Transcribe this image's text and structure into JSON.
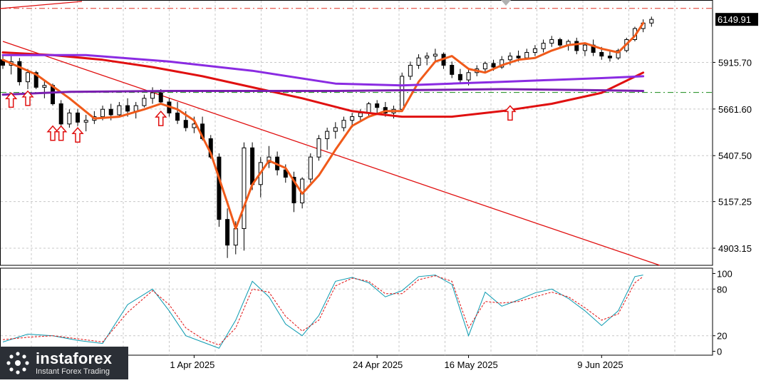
{
  "colors": {
    "background": "#ffffff",
    "grid": "#c8c8c8",
    "candle": "#000000",
    "ema_fast": "#f05a1a",
    "ema_mid": "#e01010",
    "ema_slow": "#8a2be2",
    "ema_flat": "#7a1fb0",
    "trendline": "#e01010",
    "resistance": "#e03020",
    "support": "#1a8a1a",
    "stoch_main": "#0a9ab0",
    "stoch_signal": "#e01010",
    "arrow": "#e01010",
    "price_label_bg": "#000000",
    "price_label_text": "#ffffff"
  },
  "price_axis": {
    "ticks": [
      "6149.91",
      "5915.70",
      "5661.60",
      "5407.50",
      "5157.25",
      "4903.15"
    ],
    "current_price": "6149.91"
  },
  "oscillator_axis": {
    "ticks": [
      "100",
      "80",
      "20",
      "0"
    ]
  },
  "time_axis": {
    "labels": [
      "1 Apr 2025",
      "24 Apr 2025",
      "16 May 2025",
      "9 Jun 2025"
    ]
  },
  "watermark": {
    "brand": "instaforex",
    "tagline": "Instant Forex Trading"
  },
  "chart_data": [
    {
      "type": "candlestick",
      "title": "",
      "ylim": [
        4810,
        6240
      ],
      "grid": true,
      "x_range": [
        0,
        85
      ],
      "x_tick_positions": [
        23,
        45,
        56,
        72
      ],
      "candles": [
        {
          "o": 5930,
          "h": 5960,
          "l": 5880,
          "c": 5900
        },
        {
          "o": 5900,
          "h": 5950,
          "l": 5850,
          "c": 5920
        },
        {
          "o": 5920,
          "h": 5940,
          "l": 5790,
          "c": 5810
        },
        {
          "o": 5810,
          "h": 5880,
          "l": 5770,
          "c": 5860
        },
        {
          "o": 5860,
          "h": 5870,
          "l": 5770,
          "c": 5780
        },
        {
          "o": 5780,
          "h": 5820,
          "l": 5720,
          "c": 5790
        },
        {
          "o": 5790,
          "h": 5800,
          "l": 5680,
          "c": 5690
        },
        {
          "o": 5690,
          "h": 5710,
          "l": 5560,
          "c": 5580
        },
        {
          "o": 5580,
          "h": 5660,
          "l": 5560,
          "c": 5640
        },
        {
          "o": 5640,
          "h": 5660,
          "l": 5570,
          "c": 5590
        },
        {
          "o": 5590,
          "h": 5630,
          "l": 5540,
          "c": 5600
        },
        {
          "o": 5600,
          "h": 5650,
          "l": 5580,
          "c": 5620
        },
        {
          "o": 5620,
          "h": 5680,
          "l": 5600,
          "c": 5660
        },
        {
          "o": 5660,
          "h": 5690,
          "l": 5600,
          "c": 5630
        },
        {
          "o": 5630,
          "h": 5700,
          "l": 5620,
          "c": 5680
        },
        {
          "o": 5680,
          "h": 5720,
          "l": 5620,
          "c": 5650
        },
        {
          "o": 5650,
          "h": 5700,
          "l": 5610,
          "c": 5680
        },
        {
          "o": 5680,
          "h": 5740,
          "l": 5670,
          "c": 5720
        },
        {
          "o": 5720,
          "h": 5780,
          "l": 5690,
          "c": 5750
        },
        {
          "o": 5750,
          "h": 5770,
          "l": 5690,
          "c": 5700
        },
        {
          "o": 5700,
          "h": 5720,
          "l": 5620,
          "c": 5640
        },
        {
          "o": 5640,
          "h": 5700,
          "l": 5580,
          "c": 5600
        },
        {
          "o": 5600,
          "h": 5650,
          "l": 5540,
          "c": 5560
        },
        {
          "o": 5560,
          "h": 5620,
          "l": 5530,
          "c": 5580
        },
        {
          "o": 5580,
          "h": 5620,
          "l": 5490,
          "c": 5500
        },
        {
          "o": 5500,
          "h": 5520,
          "l": 5390,
          "c": 5400
        },
        {
          "o": 5400,
          "h": 5420,
          "l": 5020,
          "c": 5060
        },
        {
          "o": 5060,
          "h": 5120,
          "l": 4850,
          "c": 4920
        },
        {
          "o": 4920,
          "h": 5050,
          "l": 4870,
          "c": 5010
        },
        {
          "o": 5010,
          "h": 5480,
          "l": 4890,
          "c": 5450
        },
        {
          "o": 5450,
          "h": 5480,
          "l": 5220,
          "c": 5250
        },
        {
          "o": 5250,
          "h": 5400,
          "l": 5180,
          "c": 5370
        },
        {
          "o": 5370,
          "h": 5460,
          "l": 5340,
          "c": 5400
        },
        {
          "o": 5400,
          "h": 5430,
          "l": 5300,
          "c": 5330
        },
        {
          "o": 5330,
          "h": 5360,
          "l": 5260,
          "c": 5290
        },
        {
          "o": 5290,
          "h": 5320,
          "l": 5100,
          "c": 5150
        },
        {
          "o": 5150,
          "h": 5290,
          "l": 5120,
          "c": 5280
        },
        {
          "o": 5280,
          "h": 5420,
          "l": 5260,
          "c": 5400
        },
        {
          "o": 5400,
          "h": 5520,
          "l": 5380,
          "c": 5500
        },
        {
          "o": 5500,
          "h": 5560,
          "l": 5440,
          "c": 5540
        },
        {
          "o": 5540,
          "h": 5590,
          "l": 5500,
          "c": 5560
        },
        {
          "o": 5560,
          "h": 5620,
          "l": 5540,
          "c": 5600
        },
        {
          "o": 5600,
          "h": 5640,
          "l": 5560,
          "c": 5620
        },
        {
          "o": 5620,
          "h": 5660,
          "l": 5600,
          "c": 5640
        },
        {
          "o": 5640,
          "h": 5700,
          "l": 5620,
          "c": 5690
        },
        {
          "o": 5690,
          "h": 5710,
          "l": 5640,
          "c": 5670
        },
        {
          "o": 5670,
          "h": 5700,
          "l": 5620,
          "c": 5640
        },
        {
          "o": 5640,
          "h": 5680,
          "l": 5610,
          "c": 5660
        },
        {
          "o": 5660,
          "h": 5860,
          "l": 5650,
          "c": 5840
        },
        {
          "o": 5840,
          "h": 5920,
          "l": 5820,
          "c": 5900
        },
        {
          "o": 5900,
          "h": 5960,
          "l": 5880,
          "c": 5940
        },
        {
          "o": 5940,
          "h": 5970,
          "l": 5900,
          "c": 5950
        },
        {
          "o": 5950,
          "h": 5990,
          "l": 5920,
          "c": 5960
        },
        {
          "o": 5960,
          "h": 5970,
          "l": 5880,
          "c": 5900
        },
        {
          "o": 5900,
          "h": 5920,
          "l": 5830,
          "c": 5850
        },
        {
          "o": 5850,
          "h": 5880,
          "l": 5800,
          "c": 5820
        },
        {
          "o": 5820,
          "h": 5880,
          "l": 5790,
          "c": 5860
        },
        {
          "o": 5860,
          "h": 5900,
          "l": 5840,
          "c": 5880
        },
        {
          "o": 5880,
          "h": 5920,
          "l": 5860,
          "c": 5910
        },
        {
          "o": 5910,
          "h": 5930,
          "l": 5870,
          "c": 5890
        },
        {
          "o": 5890,
          "h": 5950,
          "l": 5880,
          "c": 5930
        },
        {
          "o": 5930,
          "h": 5970,
          "l": 5900,
          "c": 5950
        },
        {
          "o": 5950,
          "h": 5980,
          "l": 5920,
          "c": 5940
        },
        {
          "o": 5940,
          "h": 5990,
          "l": 5930,
          "c": 5970
        },
        {
          "o": 5970,
          "h": 6010,
          "l": 5950,
          "c": 5990
        },
        {
          "o": 5990,
          "h": 6040,
          "l": 5970,
          "c": 6020
        },
        {
          "o": 6020,
          "h": 6060,
          "l": 6000,
          "c": 6040
        },
        {
          "o": 6040,
          "h": 6050,
          "l": 5990,
          "c": 6010
        },
        {
          "o": 6010,
          "h": 6040,
          "l": 5980,
          "c": 6030
        },
        {
          "o": 6030,
          "h": 6050,
          "l": 5960,
          "c": 5980
        },
        {
          "o": 5980,
          "h": 6020,
          "l": 5950,
          "c": 6010
        },
        {
          "o": 6010,
          "h": 6040,
          "l": 5950,
          "c": 5970
        },
        {
          "o": 5970,
          "h": 6000,
          "l": 5930,
          "c": 5950
        },
        {
          "o": 5950,
          "h": 5980,
          "l": 5920,
          "c": 5940
        },
        {
          "o": 5940,
          "h": 5990,
          "l": 5930,
          "c": 5980
        },
        {
          "o": 5980,
          "h": 6050,
          "l": 5970,
          "c": 6040
        },
        {
          "o": 6040,
          "h": 6110,
          "l": 6030,
          "c": 6100
        },
        {
          "o": 6100,
          "h": 6150,
          "l": 6080,
          "c": 6130
        },
        {
          "o": 6130,
          "h": 6165,
          "l": 6110,
          "c": 6150
        }
      ],
      "indicators": [
        {
          "kind": "ema_fast",
          "x": [
            0,
            4,
            8,
            11,
            14,
            17,
            19,
            21,
            23,
            25,
            27,
            28,
            30,
            32,
            34,
            36,
            38,
            40,
            42,
            44,
            46,
            48,
            50,
            52,
            54,
            56,
            58,
            60,
            62,
            64,
            66,
            68,
            70,
            72,
            74,
            76,
            77
          ],
          "y": [
            5930,
            5850,
            5720,
            5610,
            5620,
            5660,
            5690,
            5660,
            5600,
            5420,
            5150,
            5010,
            5250,
            5380,
            5340,
            5200,
            5300,
            5440,
            5570,
            5620,
            5650,
            5650,
            5810,
            5920,
            5950,
            5880,
            5860,
            5900,
            5930,
            5940,
            5980,
            6010,
            6020,
            5990,
            5970,
            6060,
            6130
          ]
        },
        {
          "kind": "ema_mid",
          "x": [
            0,
            6,
            12,
            18,
            24,
            30,
            36,
            42,
            48,
            54,
            60,
            66,
            72,
            77
          ],
          "y": [
            5970,
            5955,
            5930,
            5890,
            5840,
            5780,
            5720,
            5650,
            5620,
            5620,
            5650,
            5690,
            5750,
            5860
          ]
        },
        {
          "kind": "ema_slow",
          "x": [
            0,
            10,
            20,
            30,
            40,
            48,
            54,
            60,
            66,
            72,
            77
          ],
          "y": [
            5955,
            5955,
            5920,
            5870,
            5800,
            5790,
            5800,
            5810,
            5820,
            5830,
            5840
          ]
        },
        {
          "kind": "ema_flat",
          "x": [
            0,
            8,
            20,
            30,
            40,
            50,
            60,
            70,
            77
          ],
          "y": [
            5740,
            5755,
            5760,
            5760,
            5760,
            5765,
            5770,
            5765,
            5760
          ]
        }
      ],
      "levels": [
        {
          "kind": "resistance",
          "y": 6210
        },
        {
          "kind": "support",
          "y": 5752
        }
      ],
      "trendline": {
        "x": [
          0,
          79
        ],
        "y": [
          6030,
          4810
        ]
      },
      "arrows_up": [
        {
          "x": 1,
          "y": 5710
        },
        {
          "x": 3,
          "y": 5720
        },
        {
          "x": 6,
          "y": 5530
        },
        {
          "x": 7,
          "y": 5530
        },
        {
          "x": 9,
          "y": 5520
        },
        {
          "x": 19,
          "y": 5610
        },
        {
          "x": 61,
          "y": 5640
        }
      ]
    },
    {
      "type": "line",
      "title": "",
      "ylim": [
        -5,
        105
      ],
      "grid": true,
      "series": [
        {
          "kind": "stoch_main",
          "x": [
            0,
            3,
            6,
            9,
            12,
            15,
            18,
            20,
            22,
            24,
            26,
            28,
            30,
            32,
            34,
            36,
            38,
            40,
            42,
            44,
            46,
            48,
            50,
            52,
            54,
            56,
            58,
            60,
            62,
            64,
            66,
            68,
            70,
            72,
            74,
            76,
            77
          ],
          "y": [
            12,
            22,
            20,
            14,
            10,
            60,
            80,
            52,
            20,
            12,
            4,
            40,
            90,
            70,
            35,
            20,
            46,
            90,
            95,
            88,
            70,
            78,
            96,
            98,
            86,
            20,
            76,
            58,
            66,
            75,
            80,
            68,
            52,
            33,
            52,
            96,
            98
          ]
        },
        {
          "kind": "stoch_signal",
          "x": [
            0,
            3,
            6,
            9,
            12,
            15,
            18,
            20,
            22,
            24,
            26,
            28,
            30,
            32,
            34,
            36,
            38,
            40,
            42,
            44,
            46,
            48,
            50,
            52,
            54,
            56,
            58,
            60,
            62,
            64,
            66,
            68,
            70,
            72,
            74,
            76,
            77
          ],
          "y": [
            15,
            18,
            20,
            16,
            12,
            50,
            78,
            60,
            30,
            16,
            8,
            30,
            80,
            76,
            45,
            26,
            40,
            84,
            94,
            90,
            74,
            74,
            92,
            97,
            90,
            30,
            64,
            62,
            64,
            70,
            76,
            70,
            56,
            40,
            48,
            88,
            96
          ]
        }
      ]
    }
  ]
}
